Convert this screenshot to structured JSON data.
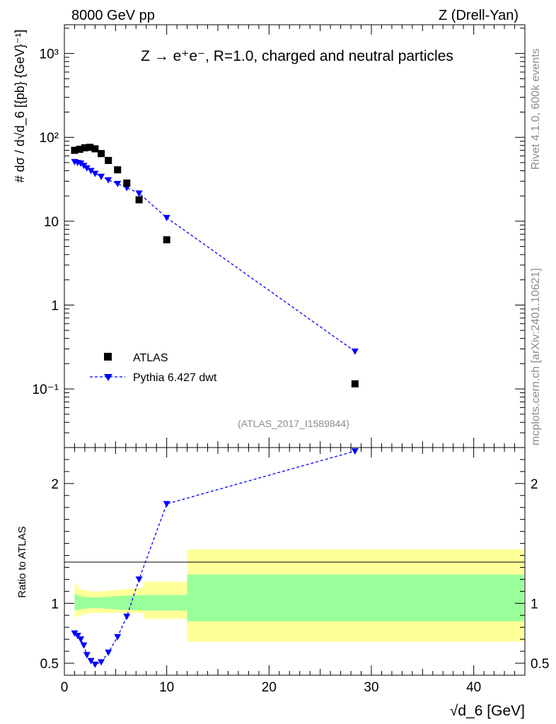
{
  "header": {
    "left": "8000 GeV pp",
    "right": "Z (Drell-Yan)"
  },
  "side": {
    "rivet": "Rivet 4.1.0,  600k events",
    "mcplots": "mcplots.cern.ch [arXiv:2401.10621]"
  },
  "colors": {
    "data": "#000000",
    "mc": "#0000ff",
    "band_outer": "#ffff99",
    "band_inner": "#99ff99"
  },
  "chart_data": [
    {
      "type": "scatter",
      "panel": "main",
      "title": "Z → e⁺e⁻, R=1.0, charged and neutral particles",
      "analysis": "(ATLAS_2017_I1589844)",
      "ylabel": "# dσ / d√d_6 [{pb} {GeV}⁻¹]",
      "yscale": "log",
      "xlim": [
        0,
        45
      ],
      "ylim": [
        0.02,
        2200
      ],
      "yticks": [
        {
          "value": 1000,
          "label": "10³"
        },
        {
          "value": 100,
          "label": "10²"
        },
        {
          "value": 10,
          "label": "10"
        },
        {
          "value": 1,
          "label": "1"
        },
        {
          "value": 0.1,
          "label": "10⁻¹"
        }
      ],
      "legend": [
        "ATLAS",
        "Pythia 6.427 dwt"
      ],
      "legend_position": "bottom-left",
      "series": [
        {
          "name": "ATLAS",
          "style": "markers",
          "x": [
            1.0,
            1.5,
            2.0,
            2.5,
            3.0,
            3.6,
            4.3,
            5.2,
            6.1,
            7.3,
            10.0,
            28.4
          ],
          "values": [
            70,
            72,
            75,
            76,
            73,
            64,
            53,
            41,
            28.5,
            18,
            6,
            0.115
          ]
        },
        {
          "name": "Pythia 6.427 dwt",
          "style": "dashed-line",
          "x": [
            1.0,
            1.3,
            1.6,
            1.9,
            2.2,
            2.6,
            3.0,
            3.6,
            4.3,
            5.2,
            6.1,
            7.3,
            10.0,
            28.4
          ],
          "values": [
            51,
            50,
            49,
            46,
            43,
            40,
            37,
            34,
            31,
            28,
            25,
            21.5,
            11,
            0.28
          ]
        }
      ]
    },
    {
      "type": "line",
      "panel": "ratio",
      "ylabel": "Ratio to ATLAS",
      "xlabel": "√d_6 [GeV]",
      "xlim": [
        0,
        45
      ],
      "ylim": [
        0.4,
        2.3
      ],
      "xticks": [
        0,
        10,
        20,
        30,
        40
      ],
      "yticks": [
        {
          "value": 0.5,
          "label": "0.5"
        },
        {
          "value": 1,
          "label": "1"
        },
        {
          "value": 2,
          "label": "2"
        }
      ],
      "series": [
        {
          "name": "Pythia 6.427 dwt / ATLAS",
          "x": [
            1.0,
            1.3,
            1.6,
            1.9,
            2.2,
            2.6,
            3.0,
            3.6,
            4.3,
            5.2,
            6.1,
            7.3,
            10.0,
            28.4
          ],
          "values": [
            0.75,
            0.73,
            0.7,
            0.65,
            0.57,
            0.52,
            0.49,
            0.51,
            0.59,
            0.72,
            0.89,
            1.2,
            1.83,
            2.27
          ]
        }
      ],
      "bands": {
        "x": [
          1.0,
          1.5,
          2.5,
          3.5,
          5.0,
          7.7,
          7.7,
          12.0,
          12.0,
          44.9
        ],
        "outer_low": [
          0.88,
          0.9,
          0.92,
          0.92,
          0.92,
          0.92,
          0.87,
          0.87,
          0.68,
          0.68
        ],
        "outer_high": [
          1.18,
          1.12,
          1.1,
          1.1,
          1.11,
          1.13,
          1.18,
          1.18,
          1.45,
          1.45
        ],
        "inner_low": [
          0.94,
          0.95,
          0.96,
          0.96,
          0.95,
          0.94,
          0.94,
          0.94,
          0.85,
          0.85
        ],
        "inner_high": [
          1.08,
          1.06,
          1.05,
          1.05,
          1.06,
          1.07,
          1.07,
          1.07,
          1.24,
          1.24
        ]
      }
    }
  ]
}
